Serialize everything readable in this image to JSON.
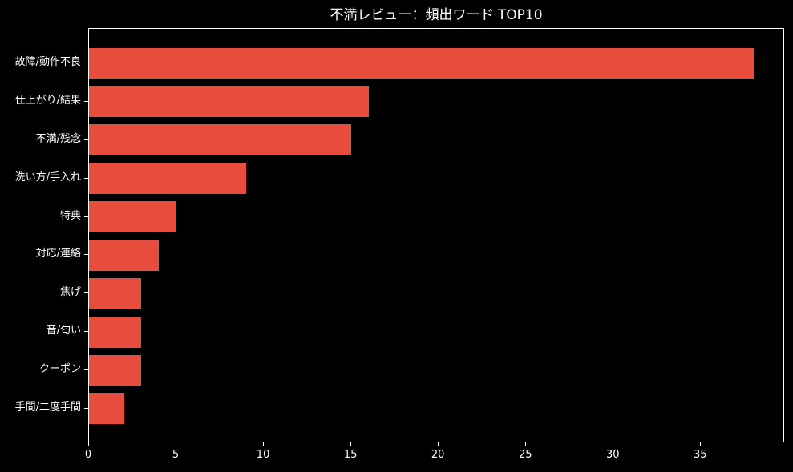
{
  "chart_data": {
    "type": "bar",
    "orientation": "horizontal",
    "title": "不満レビュー：頻出ワード TOP10",
    "categories": [
      "故障/動作不良",
      "仕上がり/結果",
      "不満/残念",
      "洗い方/手入れ",
      "特典",
      "対応/連絡",
      "焦げ",
      "音/匂い",
      "クーポン",
      "手間/二度手間"
    ],
    "values": [
      38,
      16,
      15,
      9,
      5,
      4,
      3,
      3,
      3,
      2
    ],
    "xlabel": "",
    "ylabel": "",
    "xlim": [
      0,
      39.8
    ],
    "xticks": [
      0,
      5,
      10,
      15,
      20,
      25,
      30,
      35
    ],
    "grid": false,
    "legend": null
  },
  "colors": {
    "background": "#000000",
    "bar": "#e74c3c",
    "text": "#ffffff",
    "axis": "#ffffff"
  }
}
